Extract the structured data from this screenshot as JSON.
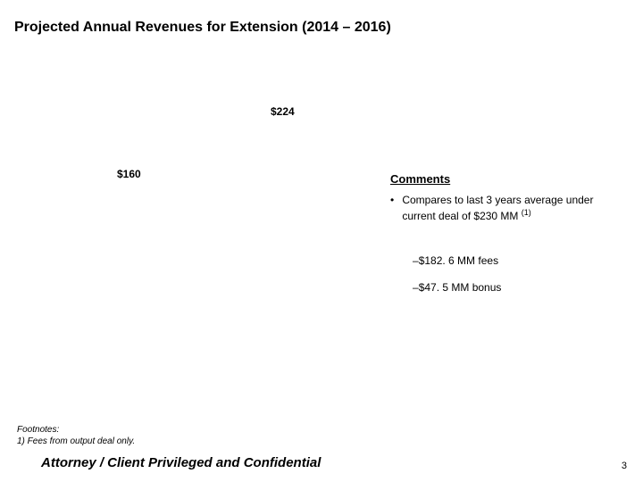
{
  "title": "Projected Annual Revenues for Extension (2014 – 2016)",
  "chart": {
    "type": "bar",
    "value_labels": [
      "$224",
      "$160"
    ],
    "label_fontsize": 12,
    "label_fontweight": "bold",
    "text_color": "#000000",
    "background_color": "#ffffff"
  },
  "comments": {
    "heading": "Comments",
    "bullet_marker": "•",
    "items": [
      {
        "text": "Compares to last 3 years average under current deal of $230 MM ",
        "superscript": "(1)",
        "subitems": [
          {
            "marker": "–",
            "text": "$182. 6 MM fees"
          },
          {
            "marker": "–",
            "text": "$47. 5 MM bonus"
          }
        ]
      }
    ],
    "heading_fontsize": 13,
    "body_fontsize": 12
  },
  "footnotes": {
    "label": "Footnotes:",
    "items": [
      "1)   Fees from output deal only."
    ],
    "fontsize": 10
  },
  "footer": {
    "text": "Attorney / Client Privileged and Confidential",
    "fontsize": 15
  },
  "page_number": "3"
}
